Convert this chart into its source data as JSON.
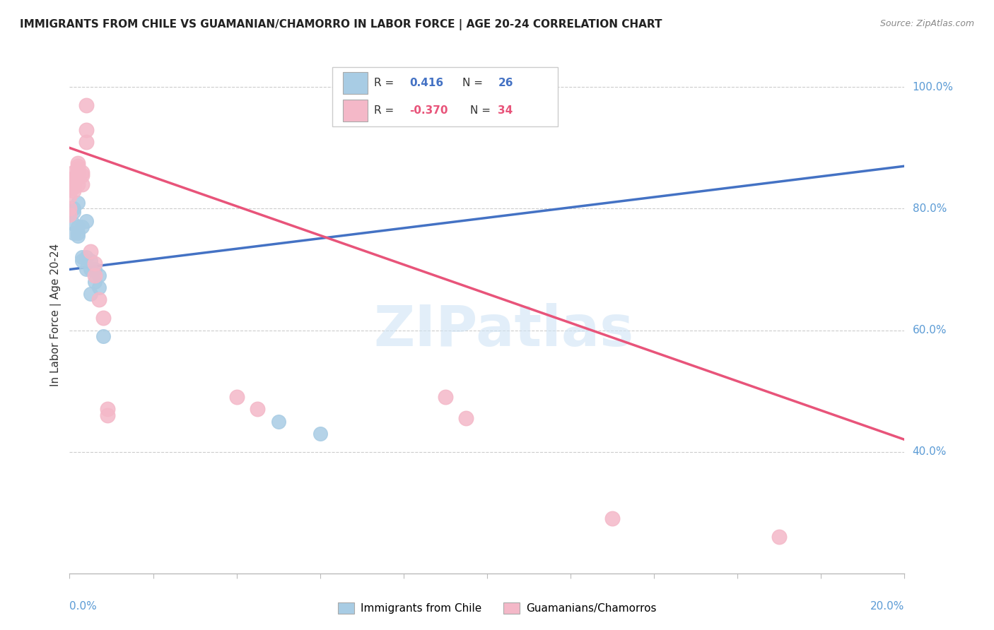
{
  "title": "IMMIGRANTS FROM CHILE VS GUAMANIAN/CHAMORRO IN LABOR FORCE | AGE 20-24 CORRELATION CHART",
  "source": "Source: ZipAtlas.com",
  "ylabel": "In Labor Force | Age 20-24",
  "xlim": [
    0.0,
    0.2
  ],
  "ylim": [
    0.2,
    1.05
  ],
  "watermark": "ZIPatlas",
  "legend_blue_r": "0.416",
  "legend_blue_n": "26",
  "legend_pink_r": "-0.370",
  "legend_pink_n": "34",
  "legend_label_blue": "Immigrants from Chile",
  "legend_label_pink": "Guamanians/Chamorros",
  "blue_color": "#a8cce4",
  "pink_color": "#f4b8c8",
  "blue_line_color": "#4472c4",
  "pink_line_color": "#e8547a",
  "ytick_vals": [
    1.0,
    0.8,
    0.6,
    0.4
  ],
  "ytick_labels": [
    "100.0%",
    "80.0%",
    "60.0%",
    "40.0%"
  ],
  "blue_scatter": [
    [
      0.0,
      0.8
    ],
    [
      0.0,
      0.79
    ],
    [
      0.001,
      0.795
    ],
    [
      0.001,
      0.76
    ],
    [
      0.001,
      0.775
    ],
    [
      0.001,
      0.8
    ],
    [
      0.002,
      0.77
    ],
    [
      0.002,
      0.76
    ],
    [
      0.002,
      0.755
    ],
    [
      0.002,
      0.81
    ],
    [
      0.003,
      0.72
    ],
    [
      0.003,
      0.715
    ],
    [
      0.003,
      0.77
    ],
    [
      0.004,
      0.7
    ],
    [
      0.004,
      0.72
    ],
    [
      0.004,
      0.78
    ],
    [
      0.005,
      0.66
    ],
    [
      0.005,
      0.715
    ],
    [
      0.005,
      0.7
    ],
    [
      0.006,
      0.68
    ],
    [
      0.006,
      0.7
    ],
    [
      0.007,
      0.67
    ],
    [
      0.007,
      0.69
    ],
    [
      0.008,
      0.59
    ],
    [
      0.05,
      0.45
    ],
    [
      0.06,
      0.43
    ]
  ],
  "pink_scatter": [
    [
      0.0,
      0.79
    ],
    [
      0.0,
      0.8
    ],
    [
      0.0,
      0.82
    ],
    [
      0.001,
      0.83
    ],
    [
      0.001,
      0.835
    ],
    [
      0.001,
      0.84
    ],
    [
      0.001,
      0.845
    ],
    [
      0.001,
      0.85
    ],
    [
      0.001,
      0.86
    ],
    [
      0.002,
      0.84
    ],
    [
      0.002,
      0.855
    ],
    [
      0.002,
      0.86
    ],
    [
      0.002,
      0.865
    ],
    [
      0.002,
      0.87
    ],
    [
      0.002,
      0.875
    ],
    [
      0.003,
      0.84
    ],
    [
      0.003,
      0.855
    ],
    [
      0.003,
      0.86
    ],
    [
      0.004,
      0.91
    ],
    [
      0.004,
      0.93
    ],
    [
      0.004,
      0.97
    ],
    [
      0.005,
      0.73
    ],
    [
      0.006,
      0.69
    ],
    [
      0.006,
      0.71
    ],
    [
      0.007,
      0.65
    ],
    [
      0.008,
      0.62
    ],
    [
      0.009,
      0.47
    ],
    [
      0.009,
      0.46
    ],
    [
      0.04,
      0.49
    ],
    [
      0.045,
      0.47
    ],
    [
      0.09,
      0.49
    ],
    [
      0.095,
      0.455
    ],
    [
      0.13,
      0.29
    ],
    [
      0.17,
      0.26
    ]
  ],
  "blue_trend_x": [
    0.0,
    0.2
  ],
  "blue_trend_y": [
    0.7,
    0.87
  ],
  "pink_trend_x": [
    0.0,
    0.2
  ],
  "pink_trend_y": [
    0.9,
    0.42
  ]
}
